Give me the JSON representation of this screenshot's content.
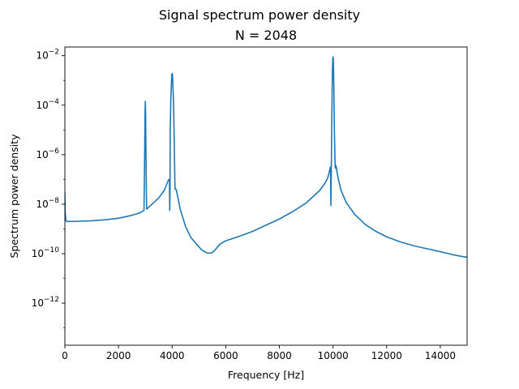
{
  "chart_data": {
    "type": "line",
    "title": "Signal spectrum power density",
    "subtitle": "N = 2048",
    "xlabel": "Frequency [Hz]",
    "ylabel": "Spectrum power density",
    "xlim": [
      0,
      15000
    ],
    "ylim_exponent": [
      -13.7,
      -1.65
    ],
    "yscale": "log",
    "grid": false,
    "x_ticks": [
      0,
      2000,
      4000,
      6000,
      8000,
      10000,
      12000,
      14000
    ],
    "x_tick_labels": [
      "0",
      "2000",
      "4000",
      "6000",
      "8000",
      "10000",
      "12000",
      "14000"
    ],
    "y_ticks_exponent": [
      -12,
      -10,
      -8,
      -6,
      -4,
      -2
    ],
    "y_tick_labels": [
      "10",
      "10",
      "10",
      "10",
      "10",
      "10"
    ],
    "y_tick_superscripts": [
      "−12",
      "−10",
      "−8",
      "−6",
      "−4",
      "−2"
    ],
    "line_color": "#1f77b4",
    "series": [
      {
        "x": [
          0,
          10,
          40,
          100,
          500,
          1000,
          1500,
          2000,
          2500,
          2800,
          2950,
          2960,
          2980,
          2990,
          3000,
          3010,
          3020,
          3040,
          3050,
          3200,
          3500,
          3700,
          3800,
          3850,
          3880,
          3900,
          3910,
          3920,
          3930,
          3950,
          3980,
          3990,
          4000,
          4010,
          4020,
          4050,
          4080,
          4100,
          4110,
          4150,
          4200,
          4300,
          4500,
          4700,
          4900,
          5100,
          5300,
          5400,
          5500,
          5600,
          5700,
          5800,
          6000,
          6500,
          7000,
          7500,
          8000,
          8500,
          9000,
          9300,
          9500,
          9700,
          9800,
          9850,
          9880,
          9900,
          9910,
          9920,
          9930,
          9950,
          9970,
          9980,
          9990,
          10000,
          10010,
          10020,
          10030,
          10050,
          10080,
          10100,
          10110,
          10130,
          10150,
          10200,
          10300,
          10500,
          10800,
          11200,
          11600,
          12000,
          12500,
          13000,
          13500,
          14000,
          14500,
          15000
        ],
        "y_exponent": [
          -7.5,
          -8.3,
          -8.68,
          -8.7,
          -8.69,
          -8.67,
          -8.63,
          -8.57,
          -8.45,
          -8.35,
          -8.25,
          -7.5,
          -5.5,
          -4.3,
          -3.85,
          -4.3,
          -5.5,
          -7.5,
          -8.2,
          -8.05,
          -7.75,
          -7.45,
          -7.2,
          -7.05,
          -7.0,
          -7.05,
          -8.25,
          -7.6,
          -5.0,
          -3.8,
          -2.95,
          -2.75,
          -2.72,
          -2.75,
          -2.95,
          -3.8,
          -5.5,
          -7.0,
          -7.4,
          -7.4,
          -7.65,
          -8.2,
          -8.9,
          -9.35,
          -9.6,
          -9.85,
          -9.97,
          -9.98,
          -9.95,
          -9.85,
          -9.72,
          -9.6,
          -9.48,
          -9.3,
          -9.1,
          -8.85,
          -8.6,
          -8.3,
          -7.95,
          -7.65,
          -7.45,
          -7.15,
          -6.95,
          -6.75,
          -6.6,
          -6.5,
          -6.6,
          -8.05,
          -7.3,
          -5.0,
          -3.2,
          -2.55,
          -2.15,
          -2.05,
          -2.15,
          -2.55,
          -3.2,
          -5.0,
          -6.5,
          -6.55,
          -6.45,
          -6.55,
          -6.7,
          -7.0,
          -7.45,
          -7.95,
          -8.4,
          -8.82,
          -9.1,
          -9.32,
          -9.52,
          -9.68,
          -9.8,
          -9.92,
          -10.05,
          -10.15
        ]
      }
    ]
  }
}
